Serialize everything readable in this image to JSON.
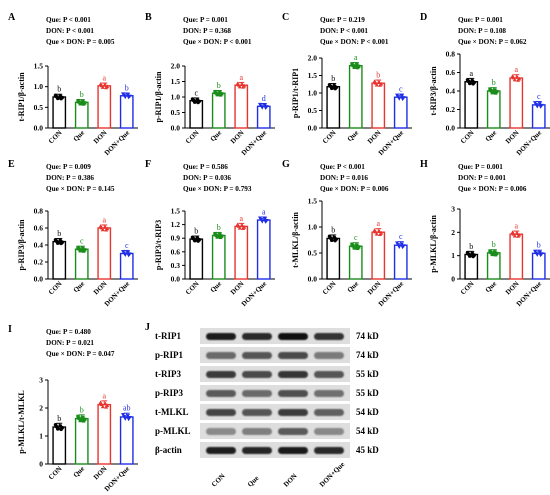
{
  "colors": {
    "CON": "#000000",
    "Que": "#1a8c1a",
    "DON": "#e8342f",
    "DON+Que": "#1f2ee6"
  },
  "chart_data": [
    {
      "type": "bar",
      "panel": "A",
      "ylabel": "t-RIP1/β-actin",
      "ylim": [
        0,
        1.5
      ],
      "yticks": [
        "0.0",
        "0.5",
        "1.0",
        "1.5"
      ],
      "categories": [
        "CON",
        "Que",
        "DON",
        "DON+Que"
      ],
      "values": [
        0.75,
        0.62,
        1.02,
        0.78
      ],
      "letters": [
        "b",
        "b",
        "a",
        "b"
      ],
      "stats": [
        "Que: P < 0.001",
        "DON: P < 0.001",
        "Que × DON: P = 0.005"
      ]
    },
    {
      "type": "bar",
      "panel": "B",
      "ylabel": "p-RIP1/β-actin",
      "ylim": [
        0,
        2.0
      ],
      "yticks": [
        "0.0",
        "0.5",
        "1.0",
        "1.5",
        "2.0"
      ],
      "categories": [
        "CON",
        "Que",
        "DON",
        "DON+Que"
      ],
      "values": [
        0.88,
        1.12,
        1.38,
        0.7
      ],
      "letters": [
        "c",
        "b",
        "a",
        "d"
      ],
      "stats": [
        "Que: P = 0.001",
        "DON: P = 0.368",
        "Que × DON: P < 0.001"
      ]
    },
    {
      "type": "bar",
      "panel": "C",
      "ylabel": "p-RIP1/t-RIP1",
      "ylim": [
        0,
        2.0
      ],
      "yticks": [
        "0.0",
        "0.5",
        "1.0",
        "1.5",
        "2.0"
      ],
      "categories": [
        "CON",
        "Que",
        "DON",
        "DON+Que"
      ],
      "values": [
        1.18,
        1.78,
        1.28,
        0.88
      ],
      "letters": [
        "b",
        "a",
        "b",
        "c"
      ],
      "stats": [
        "Que: P = 0.219",
        "DON: P < 0.001",
        "Que × DON: P < 0.001"
      ]
    },
    {
      "type": "bar",
      "panel": "D",
      "ylabel": "t-RIP3/β-actin",
      "ylim": [
        0,
        0.8
      ],
      "yticks": [
        "0.0",
        "0.2",
        "0.4",
        "0.6",
        "0.8"
      ],
      "categories": [
        "CON",
        "Que",
        "DON",
        "DON+Que"
      ],
      "values": [
        0.5,
        0.4,
        0.54,
        0.25
      ],
      "letters": [
        "a",
        "b",
        "a",
        "c"
      ],
      "stats": [
        "Que: P = 0.001",
        "DON: P = 0.108",
        "Que × DON: P = 0.062"
      ]
    },
    {
      "type": "bar",
      "panel": "E",
      "ylabel": "p-RIP3/β-actin",
      "ylim": [
        0,
        0.8
      ],
      "yticks": [
        "0.0",
        "0.2",
        "0.4",
        "0.6",
        "0.8"
      ],
      "categories": [
        "CON",
        "Que",
        "DON",
        "DON+Que"
      ],
      "values": [
        0.44,
        0.35,
        0.6,
        0.3
      ],
      "letters": [
        "b",
        "c",
        "a",
        "c"
      ],
      "stats": [
        "Que: P = 0.009",
        "DON: P = 0.386",
        "Que × DON: P = 0.145"
      ]
    },
    {
      "type": "bar",
      "panel": "F",
      "ylabel": "p-RIP3/t-RIP3",
      "ylim": [
        0,
        1.5
      ],
      "yticks": [
        "0.0",
        "0.3",
        "0.6",
        "0.9",
        "1.2",
        "1.5"
      ],
      "categories": [
        "CON",
        "Que",
        "DON",
        "DON+Que"
      ],
      "values": [
        0.88,
        0.96,
        1.16,
        1.3
      ],
      "letters": [
        "b",
        "b",
        "a",
        "a"
      ],
      "stats": [
        "Que: P = 0.586",
        "DON: P = 0.036",
        "Que × DON: P = 0.793"
      ]
    },
    {
      "type": "bar",
      "panel": "G",
      "ylabel": "t-MLKL/β-actin",
      "ylim": [
        0,
        1.5
      ],
      "yticks": [
        "0.0",
        "0.5",
        "1.0",
        "1.5"
      ],
      "categories": [
        "CON",
        "Que",
        "DON",
        "DON+Que"
      ],
      "values": [
        0.78,
        0.63,
        0.9,
        0.65
      ],
      "letters": [
        "b",
        "c",
        "a",
        "c"
      ],
      "stats": [
        "Que: P < 0.001",
        "DON: P = 0.016",
        "Que × DON: P = 0.006"
      ]
    },
    {
      "type": "bar",
      "panel": "H",
      "ylabel": "p-MLKL/β-actin",
      "ylim": [
        0,
        3
      ],
      "yticks": [
        "0",
        "1",
        "2",
        "3"
      ],
      "categories": [
        "CON",
        "Que",
        "DON",
        "DON+Que"
      ],
      "values": [
        1.05,
        1.12,
        1.92,
        1.1
      ],
      "letters": [
        "b",
        "b",
        "a",
        "b"
      ],
      "stats": [
        "Que: P = 0.001",
        "DON: P = 0.001",
        "Que × DON: P = 0.006"
      ]
    },
    {
      "type": "bar",
      "panel": "I",
      "ylabel": "p-MLKL/t-MLKL",
      "ylim": [
        0,
        3
      ],
      "yticks": [
        "0",
        "1",
        "2",
        "3"
      ],
      "categories": [
        "CON",
        "Que",
        "DON",
        "DON+Que"
      ],
      "values": [
        1.32,
        1.62,
        2.12,
        1.68
      ],
      "letters": [
        "b",
        "b",
        "a",
        "ab"
      ],
      "stats": [
        "Que: P = 0.480",
        "DON: P = 0.021",
        "Que × DON: P = 0.047"
      ]
    }
  ],
  "blot": {
    "panel": "J",
    "rows": [
      {
        "label": "t-RIP1",
        "kd": "74 kD",
        "shade": [
          "#1a1a1a",
          "#2a2a2a",
          "#111111",
          "#333333"
        ]
      },
      {
        "label": "p-RIP1",
        "kd": "74 kD",
        "shade": [
          "#6a6a6a",
          "#555555",
          "#4a4a4a",
          "#7a7a7a"
        ]
      },
      {
        "label": "t-RIP3",
        "kd": "55 kD",
        "shade": [
          "#3a3a3a",
          "#4a4a4a",
          "#353535",
          "#555555"
        ]
      },
      {
        "label": "p-RIP3",
        "kd": "55 kD",
        "shade": [
          "#5a5a5a",
          "#6a6a6a",
          "#4f4f4f",
          "#6f6f6f"
        ]
      },
      {
        "label": "t-MLKL",
        "kd": "54 kD",
        "shade": [
          "#444444",
          "#555555",
          "#3b3b3b",
          "#606060"
        ]
      },
      {
        "label": "p-MLKL",
        "kd": "54 kD",
        "shade": [
          "#8a8a8a",
          "#7f7f7f",
          "#5a5a5a",
          "#888888"
        ]
      },
      {
        "label": "β-actin",
        "kd": "45 kD",
        "shade": [
          "#1e1e1e",
          "#262626",
          "#1a1a1a",
          "#2a2a2a"
        ]
      }
    ],
    "columns": [
      "CON",
      "Que",
      "DON",
      "DON+Que"
    ]
  }
}
